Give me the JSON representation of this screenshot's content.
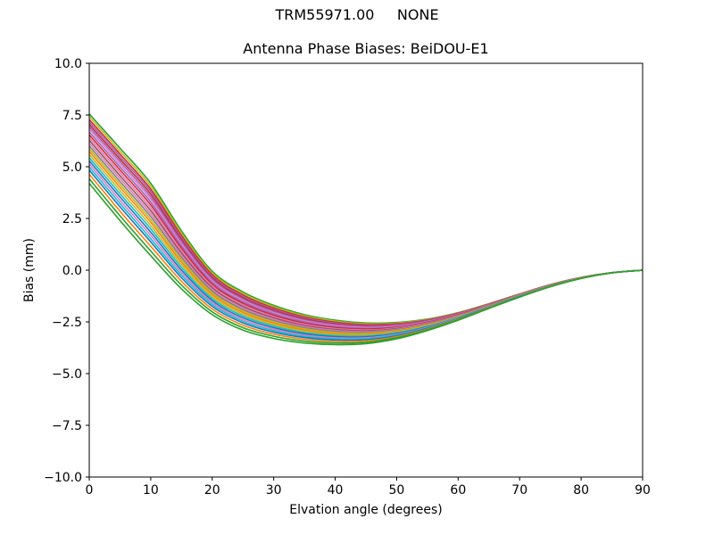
{
  "figure": {
    "suptitle": "TRM55971.00     NONE",
    "title": "Antenna Phase Biases: BeiDOU-E1",
    "xlabel": "Elvation angle (degrees)",
    "ylabel": "Bias (mm)",
    "background": "#ffffff",
    "axes_color": "#000000"
  },
  "chart_data": {
    "type": "line",
    "suptitle": "TRM55971.00     NONE",
    "title": "Antenna Phase Biases: BeiDOU-E1",
    "xlabel": "Elvation angle (degrees)",
    "ylabel": "Bias (mm)",
    "xlim": [
      0,
      90
    ],
    "ylim": [
      -10,
      10
    ],
    "grid": false,
    "legend": "none",
    "x_ticks": [
      {
        "value": 0,
        "label": "0"
      },
      {
        "value": 10,
        "label": "10"
      },
      {
        "value": 20,
        "label": "20"
      },
      {
        "value": 30,
        "label": "30"
      },
      {
        "value": 40,
        "label": "40"
      },
      {
        "value": 50,
        "label": "50"
      },
      {
        "value": 60,
        "label": "60"
      },
      {
        "value": 70,
        "label": "70"
      },
      {
        "value": 80,
        "label": "80"
      },
      {
        "value": 90,
        "label": "90"
      }
    ],
    "y_ticks": [
      {
        "value": 10,
        "label": "10.0"
      },
      {
        "value": 7.5,
        "label": "7.5"
      },
      {
        "value": 5,
        "label": "5.0"
      },
      {
        "value": 2.5,
        "label": "2.5"
      },
      {
        "value": 0,
        "label": "0.0"
      },
      {
        "value": -2.5,
        "label": "−2.5"
      },
      {
        "value": -5,
        "label": "−5.0"
      },
      {
        "value": -7.5,
        "label": "−7.5"
      },
      {
        "value": -10,
        "label": "−10.0"
      }
    ],
    "x": [
      0,
      5,
      10,
      15,
      20,
      25,
      30,
      35,
      40,
      45,
      50,
      55,
      60,
      65,
      70,
      75,
      80,
      85,
      90
    ],
    "envelope_high": [
      7.55,
      5.9,
      4.2,
      1.9,
      -0.05,
      -1.05,
      -1.7,
      -2.15,
      -2.42,
      -2.55,
      -2.53,
      -2.36,
      -2.05,
      -1.62,
      -1.15,
      -0.7,
      -0.35,
      -0.12,
      0.0
    ],
    "envelope_low": [
      4.2,
      2.4,
      0.7,
      -0.9,
      -2.15,
      -2.9,
      -3.3,
      -3.52,
      -3.6,
      -3.55,
      -3.32,
      -2.92,
      -2.42,
      -1.85,
      -1.3,
      -0.8,
      -0.4,
      -0.13,
      0.0
    ],
    "series_note": "unlabeled satellite phase-bias curves; each series value = envelope_low + t*(envelope_high - envelope_low)",
    "series": [
      {
        "color": "#2ca02c",
        "t": 1.0
      },
      {
        "color": "#bcbd22",
        "t": 0.96
      },
      {
        "color": "#d62728",
        "t": 0.92
      },
      {
        "color": "#9467bd",
        "t": 0.885
      },
      {
        "color": "#d62728",
        "t": 0.85
      },
      {
        "color": "#9467bd",
        "t": 0.815
      },
      {
        "color": "#e377c2",
        "t": 0.78
      },
      {
        "color": "#9467bd",
        "t": 0.74
      },
      {
        "color": "#d62728",
        "t": 0.7
      },
      {
        "color": "#e377c2",
        "t": 0.66
      },
      {
        "color": "#8c564b",
        "t": 0.62
      },
      {
        "color": "#e377c2",
        "t": 0.58
      },
      {
        "color": "#7f7f7f",
        "t": 0.54
      },
      {
        "color": "#bcbd22",
        "t": 0.5
      },
      {
        "color": "#ff7f0e",
        "t": 0.46
      },
      {
        "color": "#bcbd22",
        "t": 0.415
      },
      {
        "color": "#17becf",
        "t": 0.37
      },
      {
        "color": "#1f77b4",
        "t": 0.325
      },
      {
        "color": "#e377c2",
        "t": 0.28
      },
      {
        "color": "#17becf",
        "t": 0.235
      },
      {
        "color": "#1f77b4",
        "t": 0.19
      },
      {
        "color": "#ff7f0e",
        "t": 0.13
      },
      {
        "color": "#2ca02c",
        "t": 0.065
      },
      {
        "color": "#2ca02c",
        "t": 0.0
      }
    ]
  }
}
